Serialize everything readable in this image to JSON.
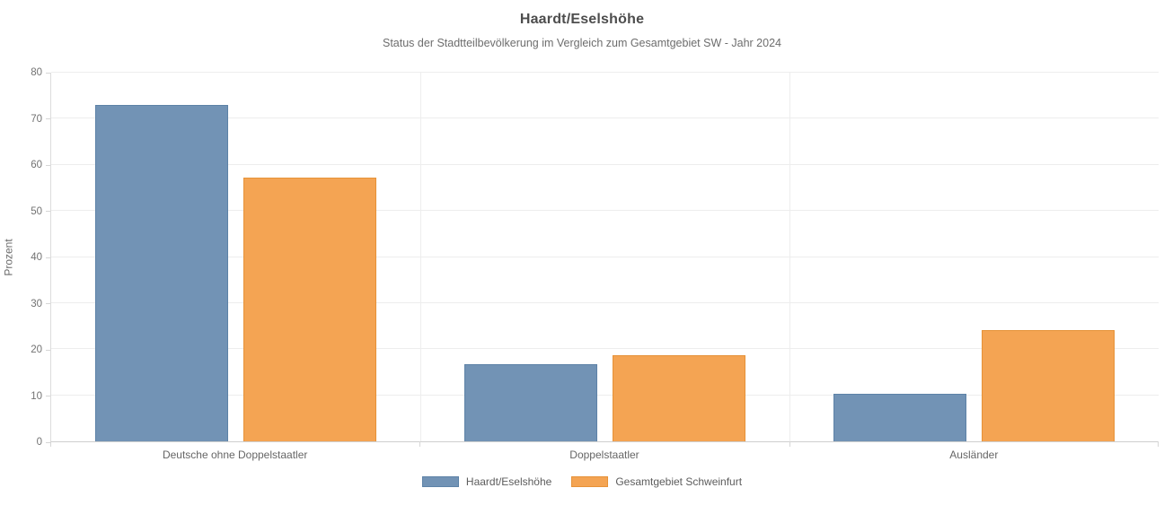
{
  "chart_data": {
    "type": "bar",
    "title": "Haardt/Eselshöhe",
    "subtitle": "Status der Stadtteilbevölkerung im Vergleich zum Gesamtgebiet SW - Jahr 2024",
    "categories": [
      "Deutsche ohne Doppelstaatler",
      "Doppelstaatler",
      "Ausländer"
    ],
    "series": [
      {
        "name": "Haardt/Eselshöhe",
        "values": [
          73.0,
          16.7,
          10.3
        ],
        "color": "#7293b5",
        "border_color": "#5d82a7"
      },
      {
        "name": "Gesamtgebiet Schweinfurt",
        "values": [
          57.2,
          18.7,
          24.1
        ],
        "color": "#f4a453",
        "border_color": "#e69238"
      }
    ],
    "xlabel": "",
    "ylabel": "Prozent",
    "ylim": [
      0,
      80
    ],
    "yticks": [
      0,
      10,
      20,
      30,
      40,
      50,
      60,
      70,
      80
    ],
    "grid": true,
    "legend_position": "bottom",
    "unit": "Prozent"
  }
}
